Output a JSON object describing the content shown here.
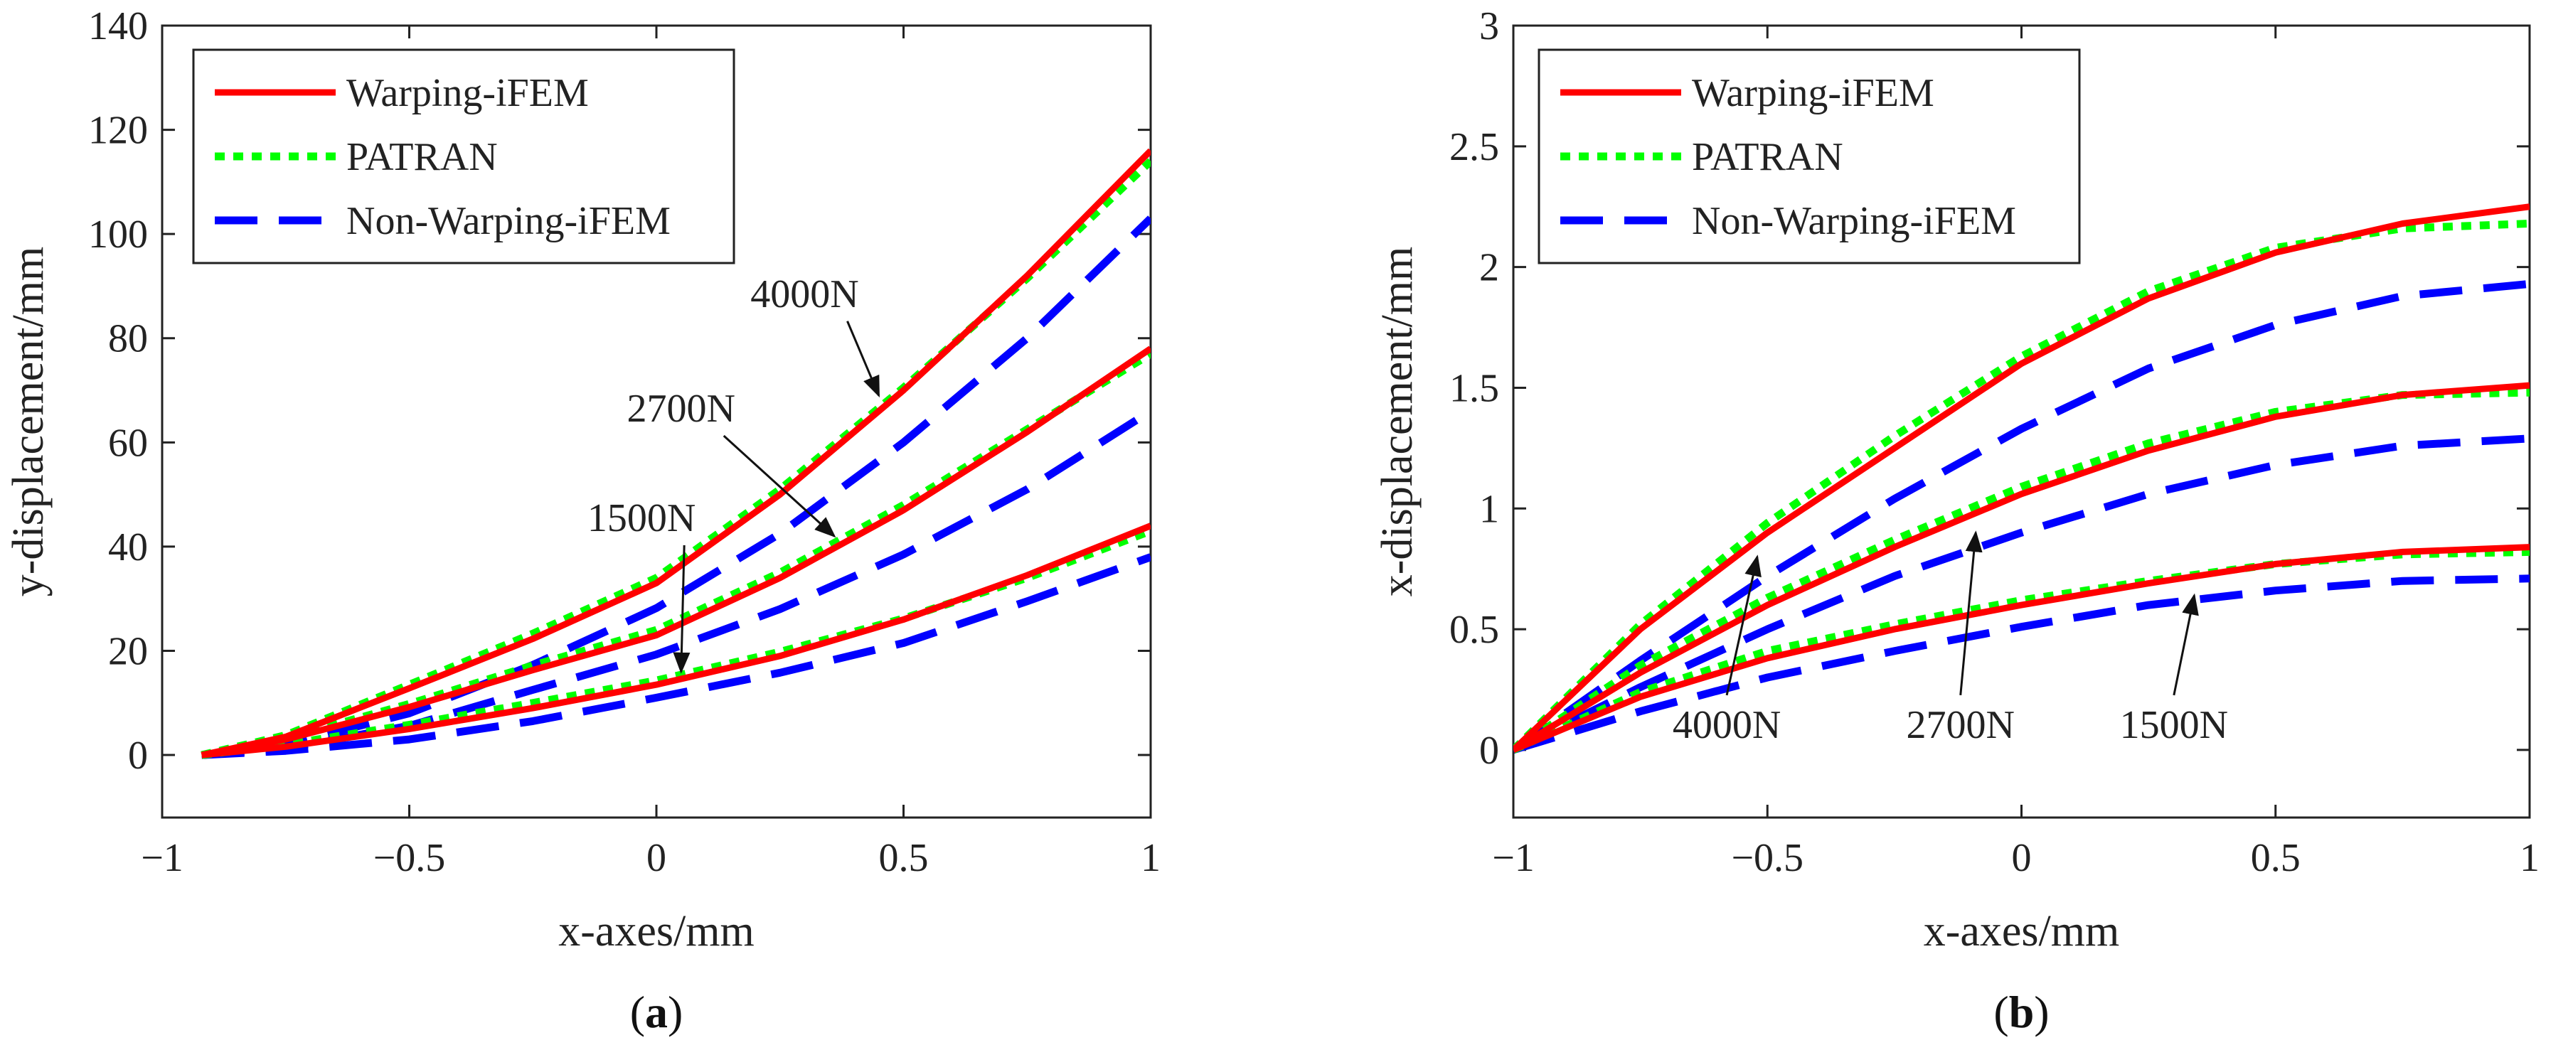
{
  "chart_data": [
    {
      "type": "line",
      "caption": {
        "open": "(",
        "letter": "a",
        "close": ")"
      },
      "xlabel": "x-axes/mm",
      "ylabel": "y-displacement/mm",
      "xlim": [
        -1,
        1
      ],
      "ylim": [
        -12,
        140
      ],
      "xticks": [
        -1,
        -0.5,
        0,
        0.5,
        1
      ],
      "xtick_labels": [
        "−1",
        "−0.5",
        "0",
        "0.5",
        "1"
      ],
      "yticks": [
        0,
        20,
        40,
        60,
        80,
        100,
        120,
        140
      ],
      "ytick_labels": [
        "0",
        "20",
        "40",
        "60",
        "80",
        "100",
        "120",
        "140"
      ],
      "grid": false,
      "legend": {
        "location": "top-left",
        "entries": [
          "Warping-iFEM",
          "PATRAN",
          "Non-Warping-iFEM"
        ]
      },
      "series_styles": {
        "Warping-iFEM": {
          "color": "#ff0000",
          "dash": "solid"
        },
        "PATRAN": {
          "color": "#00ff00",
          "dash": "dotted"
        },
        "Non-Warping-iFEM": {
          "color": "#0000ff",
          "dash": "dashed"
        }
      },
      "x": [
        -0.92,
        -0.75,
        -0.5,
        -0.25,
        0,
        0.25,
        0.5,
        0.75,
        1
      ],
      "series": [
        {
          "name": "Warping-iFEM",
          "load": "4000N",
          "values": [
            0,
            3.5,
            12.8,
            22.3,
            33.0,
            50,
            70,
            92,
            116
          ]
        },
        {
          "name": "PATRAN",
          "load": "4000N",
          "values": [
            0,
            3.8,
            13.5,
            23.3,
            34.0,
            51,
            70.5,
            91.5,
            114
          ]
        },
        {
          "name": "Non-Warping-iFEM",
          "load": "4000N",
          "values": [
            0,
            2.0,
            8,
            17.3,
            28.2,
            42.5,
            60,
            80,
            103
          ]
        },
        {
          "name": "Warping-iFEM",
          "load": "2700N",
          "values": [
            0,
            3.0,
            9.2,
            16.3,
            23.0,
            34,
            47,
            62,
            78
          ]
        },
        {
          "name": "PATRAN",
          "load": "2700N",
          "values": [
            0,
            3.2,
            9.8,
            17.2,
            24.0,
            35,
            48,
            62.5,
            77
          ]
        },
        {
          "name": "Non-Warping-iFEM",
          "load": "2700N",
          "values": [
            0,
            1.3,
            5.6,
            12.5,
            19.3,
            28,
            38.5,
            51,
            66
          ]
        },
        {
          "name": "Warping-iFEM",
          "load": "1500N",
          "values": [
            0,
            1.6,
            5.0,
            9.0,
            13.5,
            19,
            26,
            34.5,
            44
          ]
        },
        {
          "name": "PATRAN",
          "load": "1500N",
          "values": [
            0,
            2.0,
            5.8,
            10.0,
            14.3,
            19.8,
            26.2,
            34,
            43
          ]
        },
        {
          "name": "Non-Warping-iFEM",
          "load": "1500N",
          "values": [
            0,
            0.8,
            3.0,
            6.5,
            11.0,
            15.8,
            21.5,
            29.5,
            38
          ]
        }
      ],
      "annotations": [
        {
          "text": "4000N",
          "label_at": [
            0.3,
            86
          ],
          "arrow_to": [
            0.45,
            69
          ]
        },
        {
          "text": "2700N",
          "label_at": [
            0.05,
            64
          ],
          "arrow_to": [
            0.36,
            42
          ]
        },
        {
          "text": "1500N",
          "label_at": [
            -0.03,
            43
          ],
          "arrow_to": [
            0.05,
            16
          ]
        }
      ]
    },
    {
      "type": "line",
      "caption": {
        "open": "(",
        "letter": "b",
        "close": ")"
      },
      "xlabel": "x-axes/mm",
      "ylabel": "x-displacement/mm",
      "xlim": [
        -1,
        1
      ],
      "ylim": [
        -0.28,
        3
      ],
      "xticks": [
        -1,
        -0.5,
        0,
        0.5,
        1
      ],
      "xtick_labels": [
        "−1",
        "−0.5",
        "0",
        "0.5",
        "1"
      ],
      "yticks": [
        0,
        0.5,
        1,
        1.5,
        2,
        2.5,
        3
      ],
      "ytick_labels": [
        "0",
        "0.5",
        "1",
        "1.5",
        "2",
        "2.5",
        "3"
      ],
      "grid": false,
      "legend": {
        "location": "top-left",
        "entries": [
          "Warping-iFEM",
          "PATRAN",
          "Non-Warping-iFEM"
        ]
      },
      "series_styles": {
        "Warping-iFEM": {
          "color": "#ff0000",
          "dash": "solid"
        },
        "PATRAN": {
          "color": "#00ff00",
          "dash": "dotted"
        },
        "Non-Warping-iFEM": {
          "color": "#0000ff",
          "dash": "dashed"
        }
      },
      "x": [
        -1,
        -0.75,
        -0.5,
        -0.25,
        0,
        0.25,
        0.5,
        0.75,
        1
      ],
      "series": [
        {
          "name": "Warping-iFEM",
          "load": "4000N",
          "values": [
            0,
            0.5,
            0.9,
            1.25,
            1.6,
            1.87,
            2.06,
            2.18,
            2.25
          ]
        },
        {
          "name": "PATRAN",
          "load": "4000N",
          "values": [
            0,
            0.52,
            0.94,
            1.3,
            1.63,
            1.9,
            2.08,
            2.16,
            2.18
          ]
        },
        {
          "name": "Non-Warping-iFEM",
          "load": "4000N",
          "values": [
            0,
            0.37,
            0.72,
            1.04,
            1.33,
            1.58,
            1.76,
            1.88,
            1.93
          ]
        },
        {
          "name": "Warping-iFEM",
          "load": "2700N",
          "values": [
            0,
            0.32,
            0.6,
            0.84,
            1.06,
            1.24,
            1.38,
            1.47,
            1.51
          ]
        },
        {
          "name": "PATRAN",
          "load": "2700N",
          "values": [
            0,
            0.35,
            0.63,
            0.87,
            1.09,
            1.27,
            1.4,
            1.47,
            1.48
          ]
        },
        {
          "name": "Non-Warping-iFEM",
          "load": "2700N",
          "values": [
            0,
            0.26,
            0.5,
            0.72,
            0.9,
            1.06,
            1.18,
            1.26,
            1.29
          ]
        },
        {
          "name": "Warping-iFEM",
          "load": "1500N",
          "values": [
            0,
            0.22,
            0.38,
            0.5,
            0.6,
            0.69,
            0.77,
            0.82,
            0.84
          ]
        },
        {
          "name": "PATRAN",
          "load": "1500N",
          "values": [
            0,
            0.24,
            0.41,
            0.52,
            0.62,
            0.7,
            0.77,
            0.81,
            0.82
          ]
        },
        {
          "name": "Non-Warping-iFEM",
          "load": "1500N",
          "values": [
            0,
            0.16,
            0.3,
            0.41,
            0.51,
            0.6,
            0.66,
            0.7,
            0.71
          ]
        }
      ],
      "annotations": [
        {
          "text": "4000N",
          "label_at": [
            -0.58,
            0.05
          ],
          "arrow_to": [
            -0.52,
            0.8
          ]
        },
        {
          "text": "2700N",
          "label_at": [
            -0.12,
            0.05
          ],
          "arrow_to": [
            -0.09,
            0.9
          ]
        },
        {
          "text": "1500N",
          "label_at": [
            0.3,
            0.05
          ],
          "arrow_to": [
            0.34,
            0.64
          ]
        }
      ]
    }
  ]
}
